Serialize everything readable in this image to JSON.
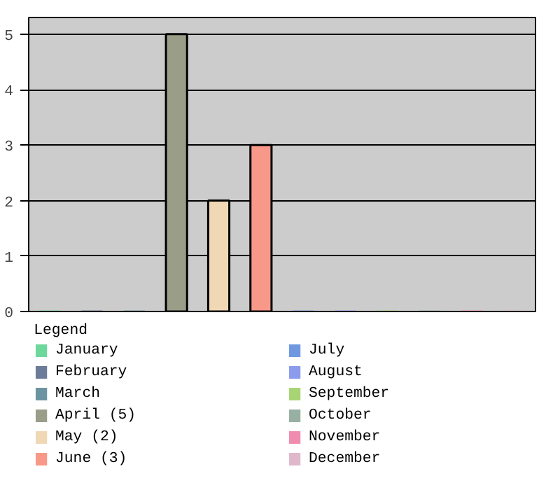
{
  "chart_data": {
    "type": "bar",
    "categories": [
      null,
      null,
      null,
      null,
      null,
      null,
      null,
      null,
      null,
      null,
      null,
      null
    ],
    "series": [
      {
        "name": "January",
        "color": "#6cd89c",
        "values": [
          0,
          null,
          null,
          null,
          null,
          null,
          null,
          null,
          null,
          null,
          null,
          null
        ]
      },
      {
        "name": "February",
        "color": "#6c7c98",
        "values": [
          null,
          0,
          null,
          null,
          null,
          null,
          null,
          null,
          null,
          null,
          null,
          null
        ]
      },
      {
        "name": "March",
        "color": "#6c94a0",
        "values": [
          null,
          null,
          0,
          null,
          null,
          null,
          null,
          null,
          null,
          null,
          null,
          null
        ]
      },
      {
        "name": "April (5)",
        "color": "#9a9e88",
        "values": [
          null,
          null,
          null,
          5,
          null,
          null,
          null,
          null,
          null,
          null,
          null,
          null
        ]
      },
      {
        "name": "May (2)",
        "color": "#f0d8b4",
        "values": [
          null,
          null,
          null,
          null,
          2,
          null,
          null,
          null,
          null,
          null,
          null,
          null
        ]
      },
      {
        "name": "June (3)",
        "color": "#f89888",
        "values": [
          null,
          null,
          null,
          null,
          null,
          3,
          null,
          null,
          null,
          null,
          null,
          null
        ]
      },
      {
        "name": "July",
        "color": "#7098e0",
        "values": [
          null,
          null,
          null,
          null,
          null,
          null,
          0,
          null,
          null,
          null,
          null,
          null
        ]
      },
      {
        "name": "August",
        "color": "#8c9cec",
        "values": [
          null,
          null,
          null,
          null,
          null,
          null,
          null,
          0,
          null,
          null,
          null,
          null
        ]
      },
      {
        "name": "September",
        "color": "#a8d474",
        "values": [
          null,
          null,
          null,
          null,
          null,
          null,
          null,
          null,
          0,
          null,
          null,
          null
        ]
      },
      {
        "name": "October",
        "color": "#98b0a4",
        "values": [
          null,
          null,
          null,
          null,
          null,
          null,
          null,
          null,
          null,
          0,
          null,
          null
        ]
      },
      {
        "name": "November",
        "color": "#f08cb0",
        "values": [
          null,
          null,
          null,
          null,
          null,
          null,
          null,
          null,
          null,
          null,
          0,
          null
        ]
      },
      {
        "name": "December",
        "color": "#e0b8cc",
        "values": [
          null,
          null,
          null,
          null,
          null,
          null,
          null,
          null,
          null,
          null,
          null,
          0
        ]
      }
    ],
    "legend_title": "Legend",
    "legend": "bottom",
    "ylim": [
      0,
      5.3
    ],
    "yticks": [
      0,
      1,
      2,
      3,
      4,
      5
    ],
    "grid": "y"
  }
}
